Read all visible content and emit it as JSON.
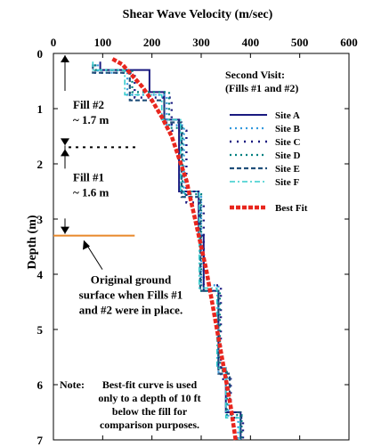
{
  "chart_data": {
    "type": "line",
    "title": "Shear Wave Velocity (m/sec)",
    "ylabel": "Depth (m)",
    "xlim": [
      0,
      600
    ],
    "ylim": [
      0,
      7
    ],
    "x_ticks": [
      0,
      100,
      200,
      300,
      400,
      500,
      600
    ],
    "y_ticks": [
      0,
      1,
      2,
      3,
      4,
      5,
      6,
      7
    ],
    "legend_title": [
      "Second Visit:",
      "(Fills #1 and #2)"
    ],
    "series": [
      {
        "name": "Site A",
        "color": "#1a1a80",
        "dash": "solid",
        "points": [
          [
            95,
            0.15
          ],
          [
            95,
            0.3
          ],
          [
            195,
            0.3
          ],
          [
            195,
            0.7
          ],
          [
            225,
            0.7
          ],
          [
            225,
            1.2
          ],
          [
            255,
            1.2
          ],
          [
            255,
            2.5
          ],
          [
            295,
            2.5
          ],
          [
            295,
            3.3
          ],
          [
            305,
            3.3
          ],
          [
            305,
            4.3
          ],
          [
            335,
            4.3
          ],
          [
            335,
            5.7
          ],
          [
            350,
            5.7
          ],
          [
            350,
            6.5
          ],
          [
            380,
            6.5
          ],
          [
            380,
            7.0
          ]
        ]
      },
      {
        "name": "Site B",
        "color": "#3399dd",
        "dash": "dot",
        "points": [
          [
            90,
            0.2
          ],
          [
            90,
            0.35
          ],
          [
            150,
            0.35
          ],
          [
            150,
            0.75
          ],
          [
            230,
            0.75
          ],
          [
            230,
            1.3
          ],
          [
            265,
            1.3
          ],
          [
            265,
            2.6
          ],
          [
            300,
            2.6
          ],
          [
            300,
            4.2
          ],
          [
            335,
            4.2
          ],
          [
            335,
            5.8
          ],
          [
            355,
            5.8
          ],
          [
            355,
            6.6
          ],
          [
            375,
            6.6
          ],
          [
            375,
            7.0
          ]
        ]
      },
      {
        "name": "Site C",
        "color": "#1a1a80",
        "dash": "dotsparse",
        "points": [
          [
            85,
            0.2
          ],
          [
            85,
            0.35
          ],
          [
            165,
            0.35
          ],
          [
            165,
            0.8
          ],
          [
            240,
            0.8
          ],
          [
            240,
            1.4
          ],
          [
            270,
            1.4
          ],
          [
            270,
            2.7
          ],
          [
            305,
            2.7
          ],
          [
            305,
            4.2
          ],
          [
            340,
            4.2
          ],
          [
            340,
            5.9
          ],
          [
            360,
            5.9
          ],
          [
            360,
            6.6
          ],
          [
            385,
            6.6
          ],
          [
            385,
            7.0
          ]
        ]
      },
      {
        "name": "Site D",
        "color": "#008080",
        "dash": "dot",
        "points": [
          [
            85,
            0.2
          ],
          [
            85,
            0.3
          ],
          [
            160,
            0.3
          ],
          [
            160,
            0.7
          ],
          [
            235,
            0.7
          ],
          [
            235,
            1.35
          ],
          [
            262,
            1.35
          ],
          [
            262,
            2.55
          ],
          [
            300,
            2.55
          ],
          [
            300,
            4.3
          ],
          [
            338,
            4.3
          ],
          [
            338,
            5.75
          ],
          [
            352,
            5.75
          ],
          [
            352,
            6.55
          ],
          [
            382,
            6.55
          ],
          [
            382,
            7.0
          ]
        ]
      },
      {
        "name": "Site E",
        "color": "#1f4e79",
        "dash": "dash",
        "points": [
          [
            80,
            0.2
          ],
          [
            80,
            0.35
          ],
          [
            155,
            0.35
          ],
          [
            155,
            0.85
          ],
          [
            225,
            0.85
          ],
          [
            225,
            1.25
          ],
          [
            260,
            1.25
          ],
          [
            260,
            2.6
          ],
          [
            298,
            2.6
          ],
          [
            298,
            4.3
          ],
          [
            335,
            4.3
          ],
          [
            335,
            5.8
          ],
          [
            358,
            5.8
          ],
          [
            358,
            6.5
          ],
          [
            380,
            6.5
          ],
          [
            380,
            7.0
          ]
        ]
      },
      {
        "name": "Site F",
        "color": "#33cccc",
        "dash": "dashdot",
        "points": [
          [
            80,
            0.15
          ],
          [
            80,
            0.3
          ],
          [
            145,
            0.3
          ],
          [
            145,
            0.75
          ],
          [
            220,
            0.75
          ],
          [
            220,
            1.2
          ],
          [
            258,
            1.2
          ],
          [
            258,
            2.5
          ],
          [
            296,
            2.5
          ],
          [
            296,
            4.25
          ],
          [
            332,
            4.25
          ],
          [
            332,
            5.7
          ],
          [
            350,
            5.7
          ],
          [
            350,
            6.6
          ],
          [
            378,
            6.6
          ],
          [
            378,
            7.0
          ]
        ]
      },
      {
        "name": "Best Fit",
        "color": "#e8261e",
        "dash": "thick",
        "points": [
          [
            120,
            0.1
          ],
          [
            140,
            0.2
          ],
          [
            160,
            0.4
          ],
          [
            180,
            0.6
          ],
          [
            200,
            0.85
          ],
          [
            220,
            1.15
          ],
          [
            240,
            1.5
          ],
          [
            255,
            1.9
          ],
          [
            270,
            2.3
          ],
          [
            280,
            2.7
          ],
          [
            290,
            3.1
          ],
          [
            300,
            3.5
          ],
          [
            310,
            3.9
          ],
          [
            320,
            4.4
          ],
          [
            330,
            4.9
          ],
          [
            340,
            5.4
          ],
          [
            350,
            5.9
          ],
          [
            360,
            6.4
          ],
          [
            370,
            7.0
          ]
        ]
      }
    ],
    "annotations": {
      "fill2": [
        "Fill #2",
        "~ 1.7 m"
      ],
      "fill1": [
        "Fill #1",
        "~ 1.6 m"
      ],
      "ground": [
        "Original ground",
        "surface when Fills #1",
        "and #2 were in place."
      ],
      "note_label": "Note:",
      "note": [
        "Best-fit curve is used",
        "only to a depth of 10 ft",
        "below the fill for",
        "comparison purposes."
      ]
    },
    "ground_line_depth": 3.3,
    "fill_boundary_depth": 1.7,
    "ground_line_color": "#e8882a"
  }
}
